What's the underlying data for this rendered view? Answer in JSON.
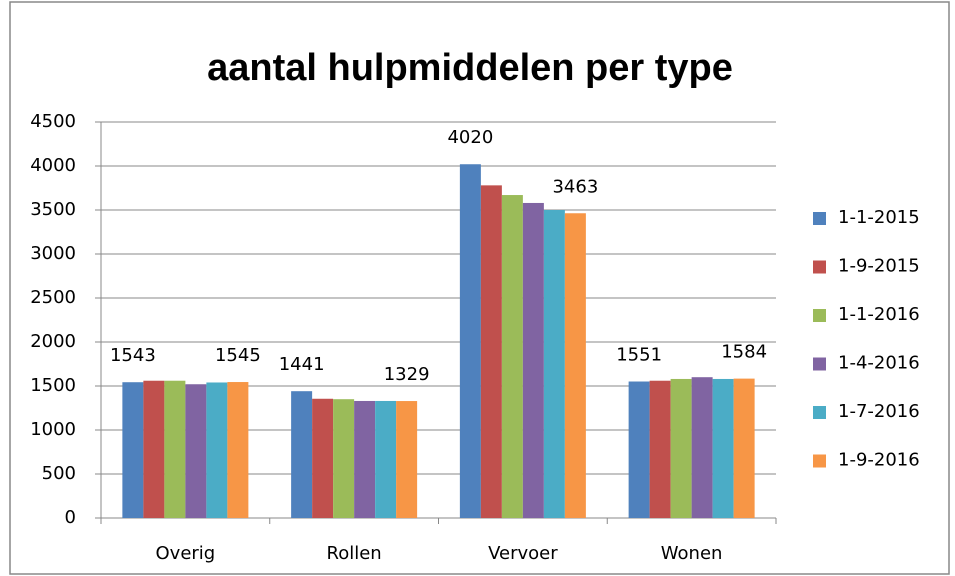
{
  "chart_data": {
    "type": "bar",
    "title": "aantal hulpmiddelen per type",
    "categories": [
      "Overig",
      "Rollen",
      "Vervoer",
      "Wonen"
    ],
    "series": [
      {
        "name": "1-1-2015",
        "color": "#4f81bd",
        "values": [
          1543,
          1441,
          4020,
          1551
        ],
        "show_labels": true
      },
      {
        "name": "1-9-2015",
        "color": "#c0504d",
        "values": [
          1560,
          1355,
          3780,
          1560
        ]
      },
      {
        "name": "1-1-2016",
        "color": "#9bbb59",
        "values": [
          1560,
          1350,
          3670,
          1580
        ]
      },
      {
        "name": "1-4-2016",
        "color": "#8064a2",
        "values": [
          1520,
          1330,
          3580,
          1600
        ]
      },
      {
        "name": "1-7-2016",
        "color": "#4bacc6",
        "values": [
          1540,
          1330,
          3500,
          1580
        ]
      },
      {
        "name": "1-9-2016",
        "color": "#f79646",
        "values": [
          1545,
          1329,
          3463,
          1584
        ],
        "show_labels": true
      }
    ],
    "ylim": [
      0,
      4500
    ],
    "yticks": [
      0,
      500,
      1000,
      1500,
      2000,
      2500,
      3000,
      3500,
      4000,
      4500
    ],
    "grid": true,
    "legend": "right"
  }
}
